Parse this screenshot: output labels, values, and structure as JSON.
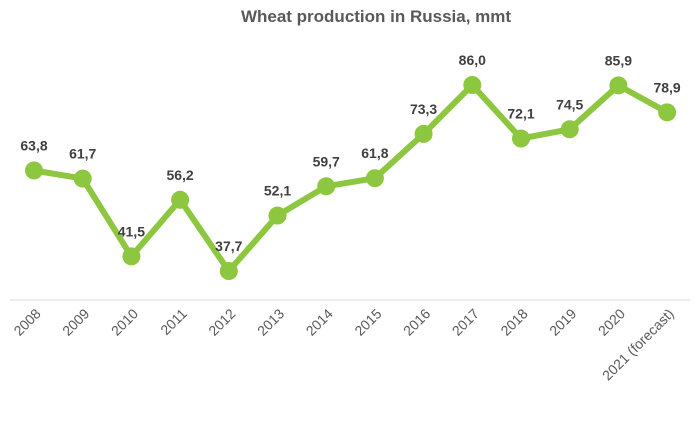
{
  "chart_data": {
    "type": "line",
    "title": "Wheat production in Russia, mmt",
    "xlabel": "",
    "ylabel": "",
    "categories": [
      "2008",
      "2009",
      "2010",
      "2011",
      "2012",
      "2013",
      "2014",
      "2015",
      "2016",
      "2017",
      "2018",
      "2019",
      "2020",
      "2021 (forecast)"
    ],
    "series": [
      {
        "values": [
          63.8,
          61.7,
          41.5,
          56.2,
          37.7,
          52.1,
          59.7,
          61.8,
          73.3,
          86.0,
          72.1,
          74.5,
          85.9,
          78.9
        ],
        "data_labels": [
          "63,8",
          "61,7",
          "41,5",
          "56,2",
          "37,7",
          "52,1",
          "59,7",
          "61,8",
          "73,3",
          "86,0",
          "72,1",
          "74,5",
          "85,9",
          "78,9"
        ]
      }
    ],
    "legend": "none",
    "grid": false,
    "colors": {
      "line": "#8DC63F",
      "marker": "#8DC63F",
      "axis": "#d9d9d9",
      "text": "#404040"
    }
  }
}
